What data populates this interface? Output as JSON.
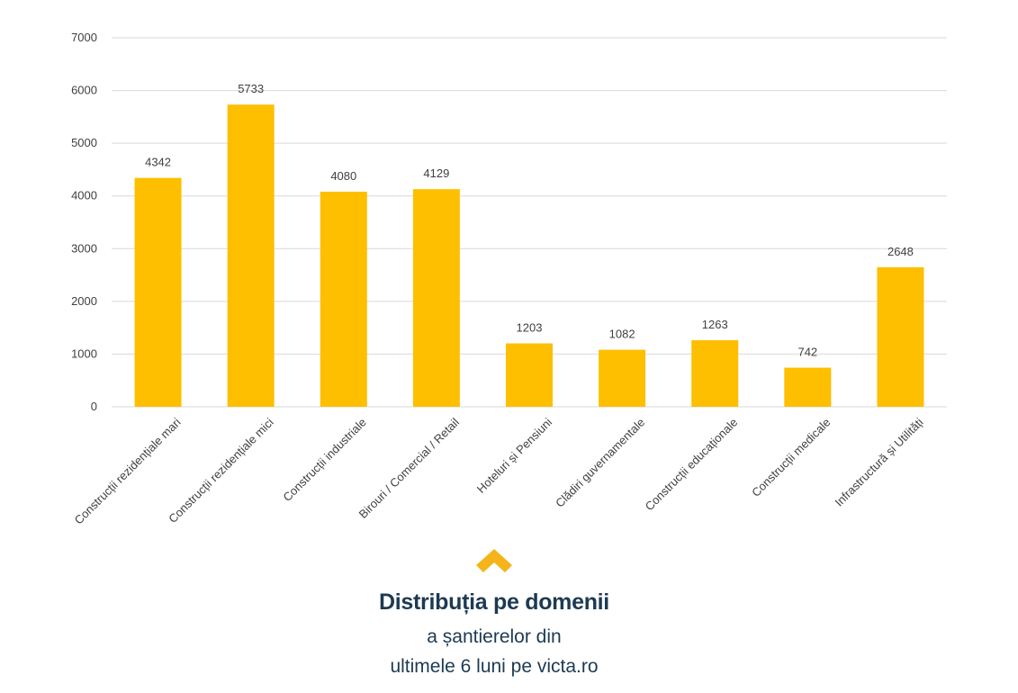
{
  "chart_data": {
    "type": "bar",
    "categories": [
      "Construcții rezidențiale mari",
      "Construcții rezidențiale mici",
      "Construcții industriale",
      "Birouri / Comercial / Retail",
      "Hoteluri și Pensiuni",
      "Clădiri guvernamentale",
      "Construcții educaționale",
      "Construcții medicale",
      "Infrastructură și Utilități"
    ],
    "values": [
      4342,
      5733,
      4080,
      4129,
      1203,
      1082,
      1263,
      742,
      2648
    ],
    "ylim": [
      0,
      7000
    ],
    "yticks": [
      0,
      1000,
      2000,
      3000,
      4000,
      5000,
      6000,
      7000
    ],
    "grid": true,
    "bar_color": "#fdbf00",
    "grid_color": "#d9d9d9",
    "title": "",
    "xlabel": "",
    "ylabel": ""
  },
  "caption": {
    "title": "Distribuția pe domenii",
    "line1": "a șantierelor din",
    "line2": "ultimele 6 luni pe victa.ro",
    "accent_color": "#f4b41a",
    "text_color": "#1d3a52",
    "icon": "chevron-up-icon"
  }
}
